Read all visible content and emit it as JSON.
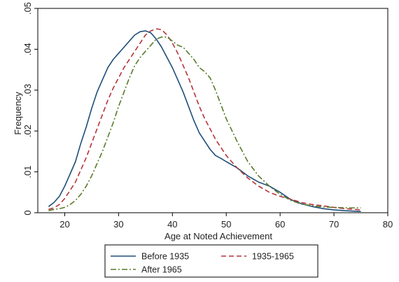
{
  "chart_data": {
    "type": "line",
    "title": "",
    "xlabel": "Age at Noted Achievement",
    "ylabel": "Frequency",
    "xlim": [
      15,
      80
    ],
    "ylim": [
      0,
      0.05
    ],
    "x_ticks": [
      20,
      30,
      40,
      50,
      60,
      70,
      80
    ],
    "x_tick_labels": [
      "20",
      "30",
      "40",
      "50",
      "60",
      "70",
      "80"
    ],
    "y_ticks": [
      0,
      0.01,
      0.02,
      0.03,
      0.04,
      0.05
    ],
    "y_tick_labels": [
      "0",
      ".01",
      ".02",
      ".03",
      ".04",
      ".05"
    ],
    "grid": false,
    "legend": {
      "position": "bottom",
      "columns": 2
    },
    "series": [
      {
        "name": "Before 1935",
        "color": "#1f4e79",
        "dash": "solid",
        "x": [
          17,
          18,
          19,
          20,
          21,
          22,
          23,
          24,
          25,
          26,
          27,
          28,
          29,
          30,
          31,
          32,
          33,
          34,
          35,
          36,
          37,
          38,
          39,
          40,
          41,
          42,
          43,
          44,
          45,
          46,
          47,
          48,
          49,
          50,
          52,
          54,
          56,
          58,
          60,
          62,
          64,
          66,
          68,
          70,
          72,
          75
        ],
        "y": [
          0.0015,
          0.0025,
          0.004,
          0.0065,
          0.0095,
          0.0125,
          0.017,
          0.021,
          0.0255,
          0.0295,
          0.0325,
          0.0355,
          0.0375,
          0.039,
          0.0405,
          0.042,
          0.0435,
          0.0443,
          0.0445,
          0.044,
          0.0425,
          0.0405,
          0.038,
          0.0355,
          0.0325,
          0.0295,
          0.026,
          0.0225,
          0.0195,
          0.0175,
          0.0155,
          0.014,
          0.0133,
          0.0125,
          0.011,
          0.009,
          0.0075,
          0.0065,
          0.005,
          0.0032,
          0.0022,
          0.0015,
          0.001,
          0.0007,
          0.0005,
          0.0003
        ]
      },
      {
        "name": "1935-1965",
        "color": "#b5343a",
        "dash": "dashed",
        "x": [
          17,
          18,
          19,
          20,
          21,
          22,
          23,
          24,
          25,
          26,
          27,
          28,
          29,
          30,
          31,
          32,
          33,
          34,
          35,
          36,
          37,
          38,
          39,
          40,
          41,
          42,
          43,
          44,
          45,
          46,
          47,
          48,
          49,
          50,
          52,
          54,
          56,
          58,
          60,
          62,
          64,
          66,
          68,
          70,
          72,
          75
        ],
        "y": [
          0.0008,
          0.0012,
          0.002,
          0.0035,
          0.0055,
          0.0075,
          0.0105,
          0.0135,
          0.017,
          0.0205,
          0.024,
          0.0275,
          0.0305,
          0.033,
          0.0355,
          0.0375,
          0.0395,
          0.0415,
          0.0435,
          0.0445,
          0.045,
          0.0448,
          0.0435,
          0.0415,
          0.039,
          0.036,
          0.033,
          0.0295,
          0.026,
          0.023,
          0.0205,
          0.018,
          0.016,
          0.014,
          0.011,
          0.0085,
          0.0065,
          0.005,
          0.004,
          0.0033,
          0.0025,
          0.002,
          0.0017,
          0.0013,
          0.001,
          0.0007
        ]
      },
      {
        "name": "After 1965",
        "color": "#5a7a2a",
        "dash": "dashdot",
        "x": [
          17,
          18,
          19,
          20,
          21,
          22,
          23,
          24,
          25,
          26,
          27,
          28,
          29,
          30,
          31,
          32,
          33,
          34,
          35,
          36,
          37,
          38,
          39,
          40,
          41,
          42,
          43,
          44,
          45,
          46,
          47,
          48,
          49,
          50,
          52,
          54,
          56,
          58,
          60,
          62,
          64,
          66,
          68,
          70,
          72,
          75
        ],
        "y": [
          0.0005,
          0.0008,
          0.001,
          0.0013,
          0.002,
          0.003,
          0.0045,
          0.0065,
          0.009,
          0.012,
          0.015,
          0.0185,
          0.022,
          0.026,
          0.0295,
          0.033,
          0.036,
          0.038,
          0.0395,
          0.041,
          0.0425,
          0.043,
          0.043,
          0.042,
          0.041,
          0.0405,
          0.039,
          0.0375,
          0.0355,
          0.0345,
          0.033,
          0.03,
          0.0265,
          0.023,
          0.0175,
          0.0125,
          0.009,
          0.0065,
          0.0045,
          0.003,
          0.0021,
          0.0017,
          0.0014,
          0.0013,
          0.0012,
          0.0012
        ]
      }
    ]
  }
}
